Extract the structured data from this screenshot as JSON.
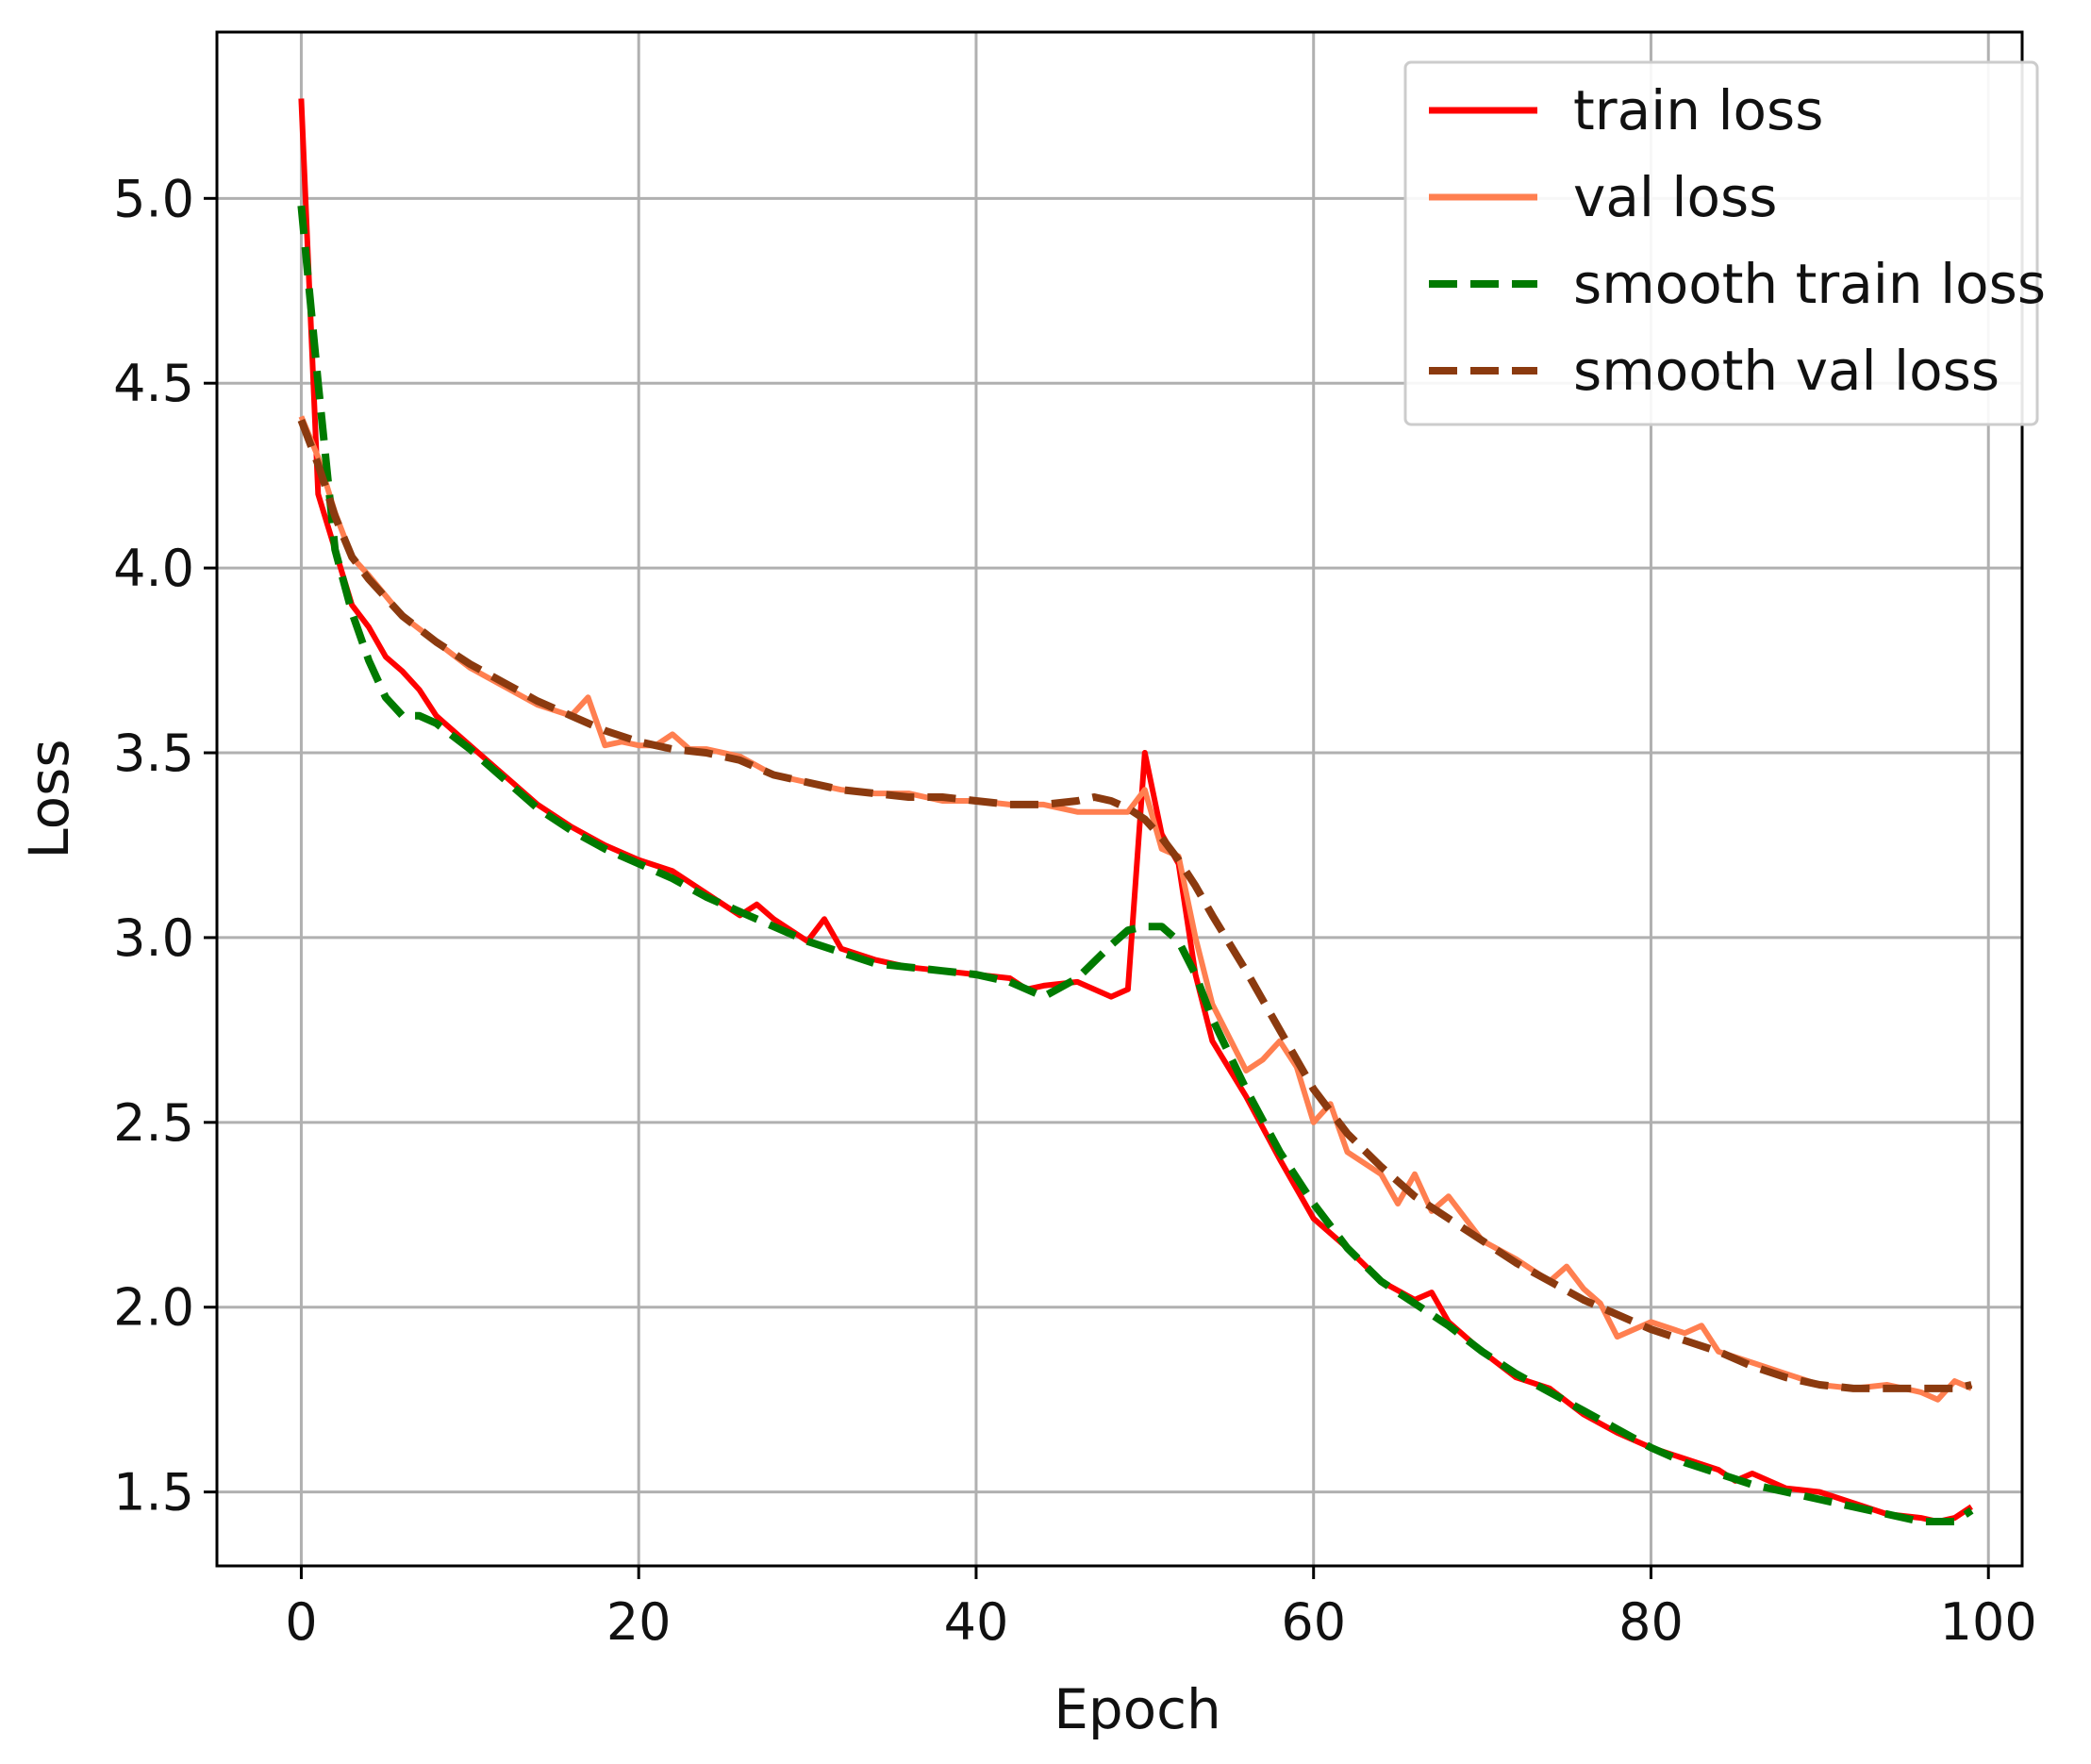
{
  "chart_data": {
    "type": "line",
    "title": "",
    "xlabel": "Epoch",
    "ylabel": "Loss",
    "xlim": [
      -5,
      102
    ],
    "ylim": [
      1.3,
      5.45
    ],
    "grid": true,
    "legend_position": "top-right",
    "x_ticks": [
      0,
      20,
      40,
      60,
      80,
      100
    ],
    "x_tick_labels": [
      "0",
      "20",
      "40",
      "60",
      "80",
      "100"
    ],
    "y_ticks": [
      1.5,
      2.0,
      2.5,
      3.0,
      3.5,
      4.0,
      4.5,
      5.0
    ],
    "y_tick_labels": [
      "1.5",
      "2.0",
      "2.5",
      "3.0",
      "3.5",
      "4.0",
      "4.5",
      "5.0"
    ],
    "series": [
      {
        "name": "train loss",
        "color": "#ff0000",
        "style": "solid",
        "x": [
          0,
          1,
          2,
          3,
          4,
          5,
          6,
          7,
          8,
          10,
          12,
          14,
          16,
          18,
          20,
          22,
          24,
          26,
          27,
          28,
          30,
          31,
          32,
          34,
          36,
          38,
          40,
          42,
          43,
          44,
          46,
          48,
          49,
          50,
          51,
          52,
          53,
          54,
          56,
          58,
          60,
          62,
          64,
          66,
          67,
          68,
          70,
          72,
          74,
          76,
          78,
          80,
          82,
          84,
          85,
          86,
          88,
          90,
          92,
          94,
          96,
          97,
          98,
          99
        ],
        "values": [
          5.27,
          4.2,
          4.05,
          3.9,
          3.84,
          3.76,
          3.72,
          3.67,
          3.6,
          3.52,
          3.44,
          3.36,
          3.3,
          3.25,
          3.21,
          3.18,
          3.12,
          3.06,
          3.09,
          3.05,
          2.99,
          3.05,
          2.97,
          2.94,
          2.92,
          2.91,
          2.9,
          2.89,
          2.86,
          2.87,
          2.88,
          2.84,
          2.86,
          3.5,
          3.28,
          3.2,
          2.9,
          2.72,
          2.57,
          2.4,
          2.24,
          2.16,
          2.07,
          2.02,
          2.04,
          1.96,
          1.88,
          1.81,
          1.78,
          1.71,
          1.66,
          1.62,
          1.59,
          1.56,
          1.53,
          1.55,
          1.51,
          1.5,
          1.47,
          1.44,
          1.43,
          1.42,
          1.43,
          1.46
        ]
      },
      {
        "name": "val loss",
        "color": "#ff7f50",
        "style": "solid",
        "x": [
          0,
          1,
          2,
          3,
          4,
          6,
          8,
          10,
          12,
          14,
          16,
          17,
          18,
          19,
          20,
          21,
          22,
          23,
          24,
          26,
          28,
          30,
          32,
          34,
          36,
          38,
          40,
          42,
          44,
          46,
          48,
          49,
          50,
          51,
          52,
          53,
          54,
          56,
          57,
          58,
          59,
          60,
          61,
          62,
          64,
          65,
          66,
          67,
          68,
          70,
          72,
          74,
          75,
          76,
          77,
          78,
          80,
          82,
          83,
          84,
          86,
          88,
          90,
          92,
          94,
          96,
          97,
          98,
          99
        ],
        "values": [
          4.41,
          4.3,
          4.15,
          4.03,
          3.98,
          3.87,
          3.8,
          3.73,
          3.68,
          3.63,
          3.6,
          3.65,
          3.52,
          3.53,
          3.52,
          3.52,
          3.55,
          3.51,
          3.51,
          3.49,
          3.44,
          3.42,
          3.4,
          3.39,
          3.39,
          3.37,
          3.37,
          3.36,
          3.36,
          3.34,
          3.34,
          3.34,
          3.4,
          3.24,
          3.22,
          3.0,
          2.82,
          2.64,
          2.67,
          2.72,
          2.65,
          2.5,
          2.55,
          2.42,
          2.36,
          2.28,
          2.36,
          2.26,
          2.3,
          2.18,
          2.13,
          2.07,
          2.11,
          2.05,
          2.01,
          1.92,
          1.96,
          1.93,
          1.95,
          1.88,
          1.85,
          1.82,
          1.79,
          1.78,
          1.79,
          1.77,
          1.75,
          1.8,
          1.78
        ]
      },
      {
        "name": "smooth train loss",
        "color": "#007a00",
        "style": "dashed",
        "x": [
          0,
          1,
          2,
          3,
          4,
          5,
          6,
          7,
          8,
          10,
          12,
          14,
          16,
          18,
          20,
          22,
          24,
          26,
          28,
          30,
          32,
          34,
          36,
          38,
          40,
          42,
          44,
          46,
          48,
          49,
          50,
          51,
          52,
          53,
          54,
          56,
          58,
          60,
          62,
          64,
          66,
          68,
          70,
          72,
          74,
          76,
          78,
          80,
          82,
          84,
          86,
          88,
          90,
          92,
          94,
          96,
          98,
          99
        ],
        "values": [
          4.98,
          4.5,
          4.05,
          3.88,
          3.75,
          3.65,
          3.6,
          3.6,
          3.58,
          3.51,
          3.43,
          3.35,
          3.29,
          3.24,
          3.2,
          3.16,
          3.11,
          3.07,
          3.03,
          2.99,
          2.96,
          2.93,
          2.92,
          2.91,
          2.9,
          2.88,
          2.84,
          2.89,
          2.98,
          3.02,
          3.03,
          3.03,
          2.99,
          2.9,
          2.78,
          2.59,
          2.42,
          2.28,
          2.16,
          2.07,
          2.01,
          1.95,
          1.88,
          1.82,
          1.77,
          1.72,
          1.67,
          1.62,
          1.58,
          1.55,
          1.52,
          1.5,
          1.48,
          1.46,
          1.44,
          1.42,
          1.42,
          1.45
        ]
      },
      {
        "name": "smooth val loss",
        "color": "#8b3a0f",
        "style": "dashed",
        "x": [
          0,
          1,
          2,
          3,
          4,
          6,
          8,
          10,
          12,
          14,
          16,
          18,
          20,
          22,
          24,
          26,
          28,
          30,
          32,
          34,
          36,
          38,
          40,
          42,
          44,
          46,
          47,
          48,
          49,
          50,
          51,
          52,
          53,
          54,
          56,
          58,
          60,
          62,
          64,
          66,
          68,
          70,
          72,
          74,
          76,
          78,
          80,
          82,
          84,
          86,
          88,
          90,
          92,
          94,
          96,
          98,
          99
        ],
        "values": [
          4.4,
          4.28,
          4.14,
          4.03,
          3.97,
          3.87,
          3.8,
          3.74,
          3.69,
          3.64,
          3.6,
          3.56,
          3.53,
          3.51,
          3.5,
          3.48,
          3.44,
          3.42,
          3.4,
          3.39,
          3.38,
          3.38,
          3.37,
          3.36,
          3.36,
          3.37,
          3.38,
          3.37,
          3.35,
          3.32,
          3.27,
          3.21,
          3.14,
          3.06,
          2.91,
          2.75,
          2.59,
          2.47,
          2.38,
          2.3,
          2.24,
          2.18,
          2.12,
          2.07,
          2.02,
          1.98,
          1.94,
          1.91,
          1.88,
          1.84,
          1.81,
          1.79,
          1.78,
          1.78,
          1.78,
          1.78,
          1.79
        ]
      }
    ]
  }
}
